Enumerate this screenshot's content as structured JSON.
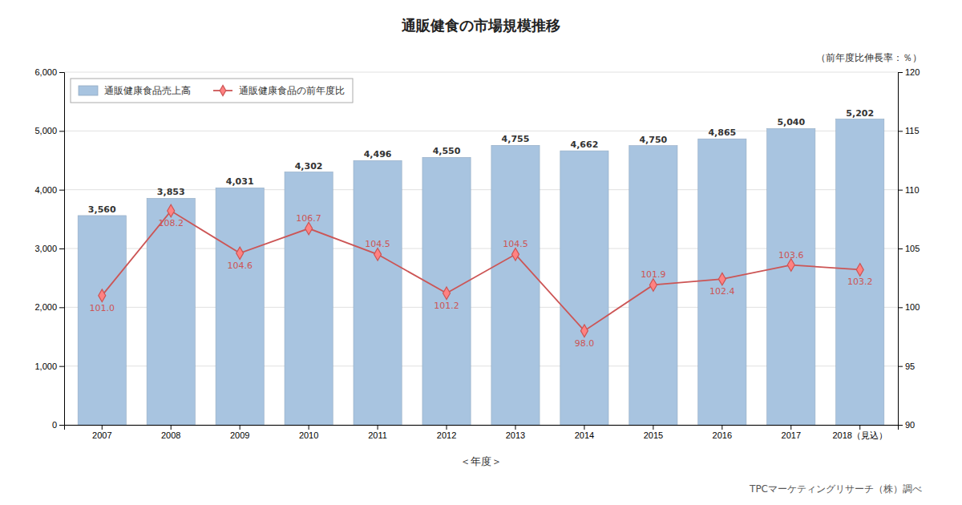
{
  "chart_data": {
    "type": "bar",
    "title": "通販健食の市場規模推移",
    "xlabel": "＜年度＞",
    "y2label": "（前年度比伸長率：％）",
    "annotations": [
      "TPCマーケティングリサーチ（株）調べ"
    ],
    "categories": [
      "2007",
      "2008",
      "2009",
      "2010",
      "2011",
      "2012",
      "2013",
      "2014",
      "2015",
      "2016",
      "2017",
      "2018（見込）"
    ],
    "series": [
      {
        "name": "通販健康食品売上高",
        "type": "bar",
        "color": "#a8c4e0",
        "values": [
          3560,
          3853,
          4031,
          4302,
          4496,
          4550,
          4755,
          4662,
          4750,
          4865,
          5040,
          5202
        ],
        "value_labels": [
          "3,560",
          "3,853",
          "4,031",
          "4,302",
          "4,496",
          "4,550",
          "4,755",
          "4,662",
          "4,750",
          "4,865",
          "5,040",
          "5,202"
        ]
      },
      {
        "name": "通販健康食品の前年度比",
        "type": "line",
        "axis": "y2",
        "color": "#cc5555",
        "marker": "diamond",
        "values": [
          101.0,
          108.2,
          104.6,
          106.7,
          104.5,
          101.2,
          104.5,
          98.0,
          101.9,
          102.4,
          103.6,
          103.2
        ],
        "value_labels": [
          "101.0",
          "108.2",
          "104.6",
          "106.7",
          "104.5",
          "101.2",
          "104.5",
          "98.0",
          "101.9",
          "102.4",
          "103.6",
          "103.2"
        ]
      }
    ],
    "ylim": [
      0,
      6000
    ],
    "yticks": [
      0,
      {
        "value": 1000,
        "label": "1,000"
      },
      {
        "value": 2000,
        "label": "2,000"
      },
      {
        "value": 3000,
        "label": "3,000"
      },
      {
        "value": 4000,
        "label": "4,000"
      },
      {
        "value": 5000,
        "label": "5,000"
      },
      {
        "value": 6000,
        "label": "6,000"
      }
    ],
    "y2lim": [
      90,
      120
    ],
    "y2ticks": [
      90,
      95,
      100,
      105,
      110,
      115,
      120
    ],
    "grid": true,
    "legend": "upper left",
    "data_labels": true
  }
}
